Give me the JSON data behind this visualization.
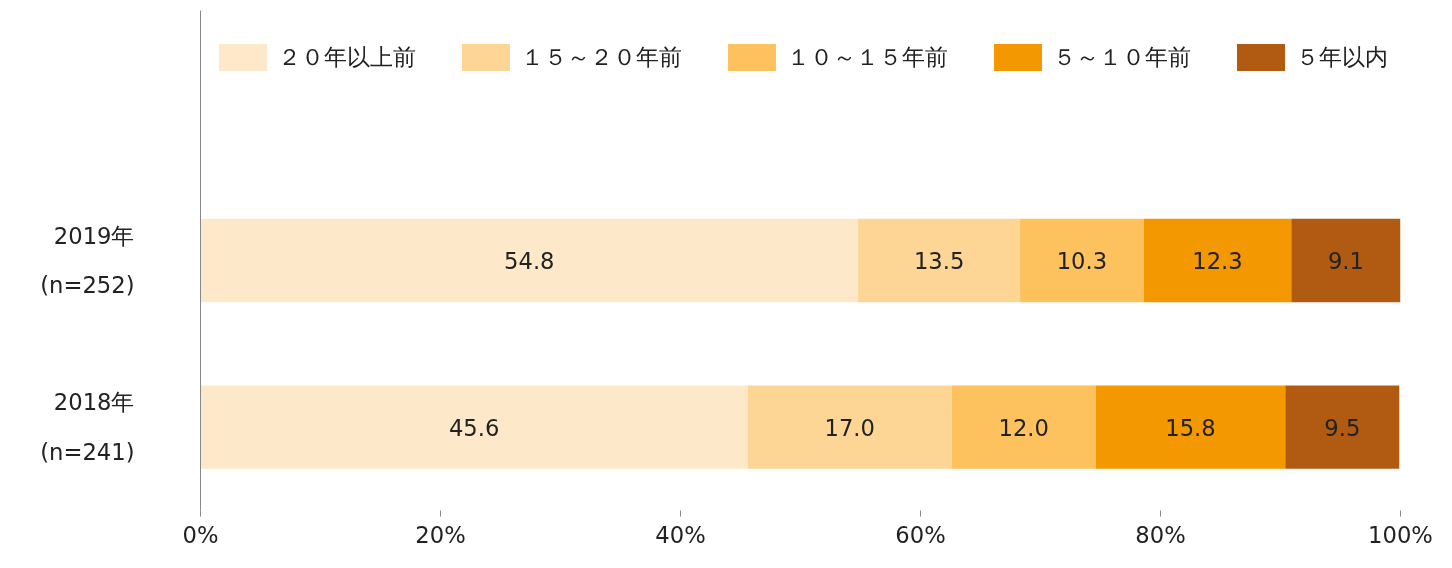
{
  "chart_data": {
    "type": "bar",
    "orientation": "horizontal",
    "stacked": true,
    "categories": [
      "2019年\n(n=252)",
      "2018年\n(n=241)"
    ],
    "series": [
      {
        "name": "２０年以上前",
        "color": "#fde9c9",
        "values": [
          54.8,
          45.6
        ],
        "value_labels": [
          "54.8",
          "45.6"
        ]
      },
      {
        "name": "１５～２０年前",
        "color": "#fdd594",
        "values": [
          13.5,
          17.0
        ],
        "value_labels": [
          "13.5",
          "17.0"
        ]
      },
      {
        "name": "１０～１５年前",
        "color": "#fdc25e",
        "values": [
          10.3,
          12.0
        ],
        "value_labels": [
          "10.3",
          "12.0"
        ]
      },
      {
        "name": "５～１０年前",
        "color": "#f39800",
        "values": [
          12.3,
          15.8
        ],
        "value_labels": [
          "12.3",
          "15.8"
        ]
      },
      {
        "name": "５年以内",
        "color": "#b05a12",
        "values": [
          9.1,
          9.5
        ],
        "value_labels": [
          "9.1",
          "9.5"
        ]
      }
    ],
    "xlim": [
      0,
      100
    ],
    "xticks": [
      {
        "value": 0,
        "label": "0%"
      },
      {
        "value": 20,
        "label": "20%"
      },
      {
        "value": 40,
        "label": "40%"
      },
      {
        "value": 60,
        "label": "60%"
      },
      {
        "value": 80,
        "label": "80%"
      },
      {
        "value": 100,
        "label": "100%"
      }
    ],
    "legend": "top",
    "grid": false
  }
}
